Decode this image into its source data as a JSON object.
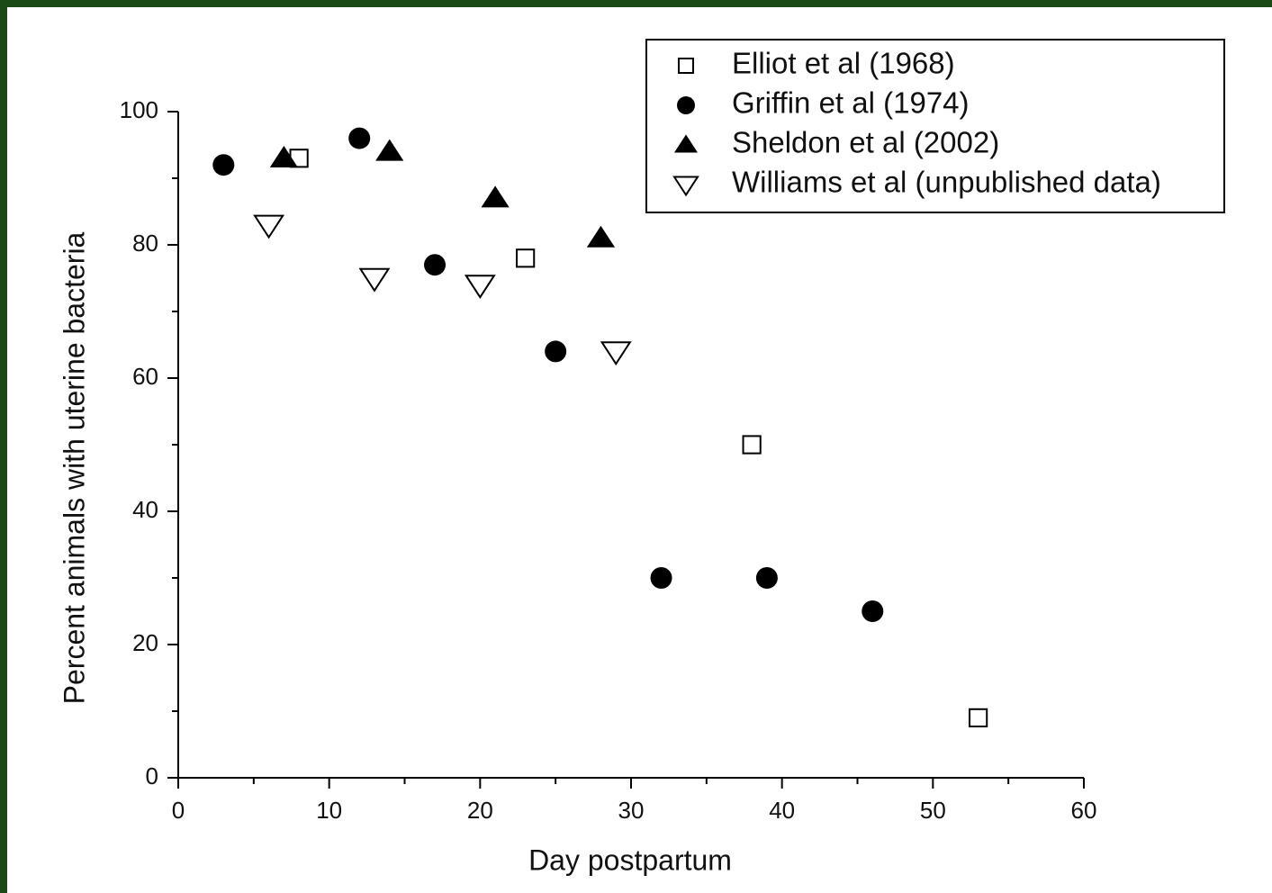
{
  "chart_data": {
    "type": "scatter",
    "xlabel": "Day postpartum",
    "ylabel": "Percent animals with uterine bacteria",
    "xlim": [
      0,
      60
    ],
    "xticks": [
      0,
      10,
      20,
      30,
      40,
      50,
      60
    ],
    "xminorticks": [
      5,
      15,
      25,
      35,
      45,
      55
    ],
    "ylim": [
      0,
      100
    ],
    "yticks": [
      0,
      20,
      40,
      60,
      80,
      100
    ],
    "yminorticks": [
      10,
      30,
      50,
      70,
      90
    ],
    "legend": "top-right",
    "series": [
      {
        "name": "Elliot et al (1968)",
        "marker": "square-open",
        "color": "#000000",
        "x": [
          8,
          23,
          38,
          53
        ],
        "values": [
          93,
          78,
          50,
          9
        ]
      },
      {
        "name": "Griffin et al (1974)",
        "marker": "circle",
        "color": "#000000",
        "x": [
          3,
          12,
          17,
          25,
          32,
          39,
          46
        ],
        "values": [
          92,
          96,
          77,
          64,
          30,
          30,
          25
        ]
      },
      {
        "name": "Sheldon et al (2002)",
        "marker": "triangle-up",
        "color": "#000000",
        "x": [
          7,
          14,
          21,
          28
        ],
        "values": [
          93,
          94,
          87,
          81
        ]
      },
      {
        "name": "Williams et al (unpublished data)",
        "marker": "triangle-down-open",
        "color": "#000000",
        "x": [
          6,
          13,
          20,
          29
        ],
        "values": [
          83,
          75,
          74,
          64
        ]
      }
    ]
  }
}
